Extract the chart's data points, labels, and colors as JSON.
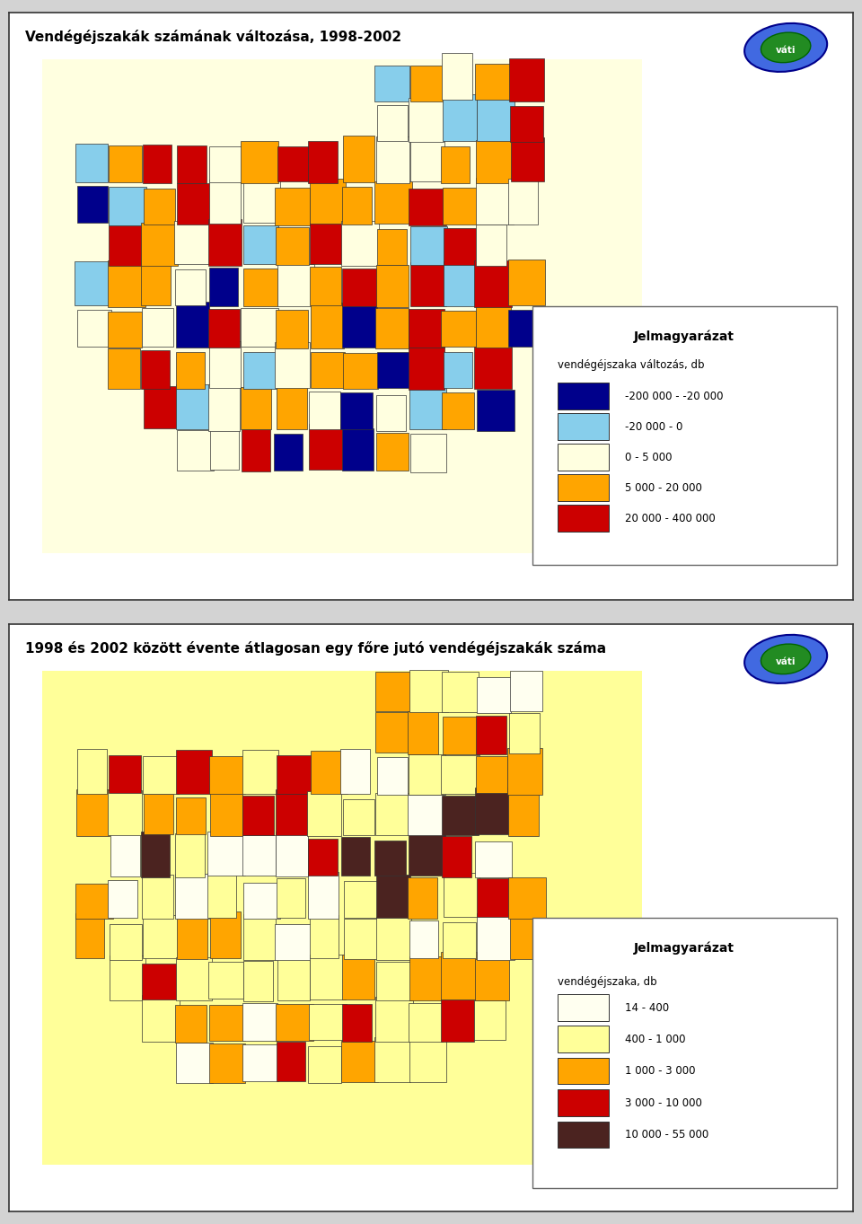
{
  "map1_title": "Vendégéjszakák számának változása, 1998-2002",
  "map2_title": "1998 és 2002 között évente átlagosan egy főre jutó vendégéjszakák száma",
  "legend1_title": "Jelmagyarázat",
  "legend1_subtitle": "vendégéjszaka változás, db",
  "legend1_entries": [
    [
      "-200 000 - -20 000",
      "#00008B"
    ],
    [
      "-20 000 - 0",
      "#87CEEB"
    ],
    [
      "0 - 5 000",
      "#FFFFE0"
    ],
    [
      "5 000 - 20 000",
      "#FFA500"
    ],
    [
      "20 000 - 400 000",
      "#CC0000"
    ]
  ],
  "legend2_title": "Jelmagyarázat",
  "legend2_subtitle": "vendégéjszaka, db",
  "legend2_entries": [
    [
      "14 - 400",
      "#FFFFF0"
    ],
    [
      "400 - 1 000",
      "#FFFF99"
    ],
    [
      "1 000 - 3 000",
      "#FFA500"
    ],
    [
      "3 000 - 10 000",
      "#CC0000"
    ],
    [
      "10 000 - 55 000",
      "#4B2320"
    ]
  ],
  "panel_bg": "#FFFFFF",
  "border_color": "#333333",
  "map_bg": "#FFFFFF",
  "title_fontsize": 11,
  "legend_title_fontsize": 10,
  "legend_subtitle_fontsize": 8.5,
  "legend_entry_fontsize": 8.5,
  "vati_text": "váti",
  "map1_colors": {
    "dark_blue": "#00008B",
    "light_blue": "#87CEEB",
    "light_yellow": "#FFFFE0",
    "orange": "#FFA500",
    "dark_red": "#CC0000"
  },
  "map2_colors": {
    "very_light": "#FFFFF0",
    "light_yellow": "#FFFF99",
    "orange": "#FFA500",
    "dark_red": "#CC0000",
    "dark_brown": "#4B2320"
  }
}
